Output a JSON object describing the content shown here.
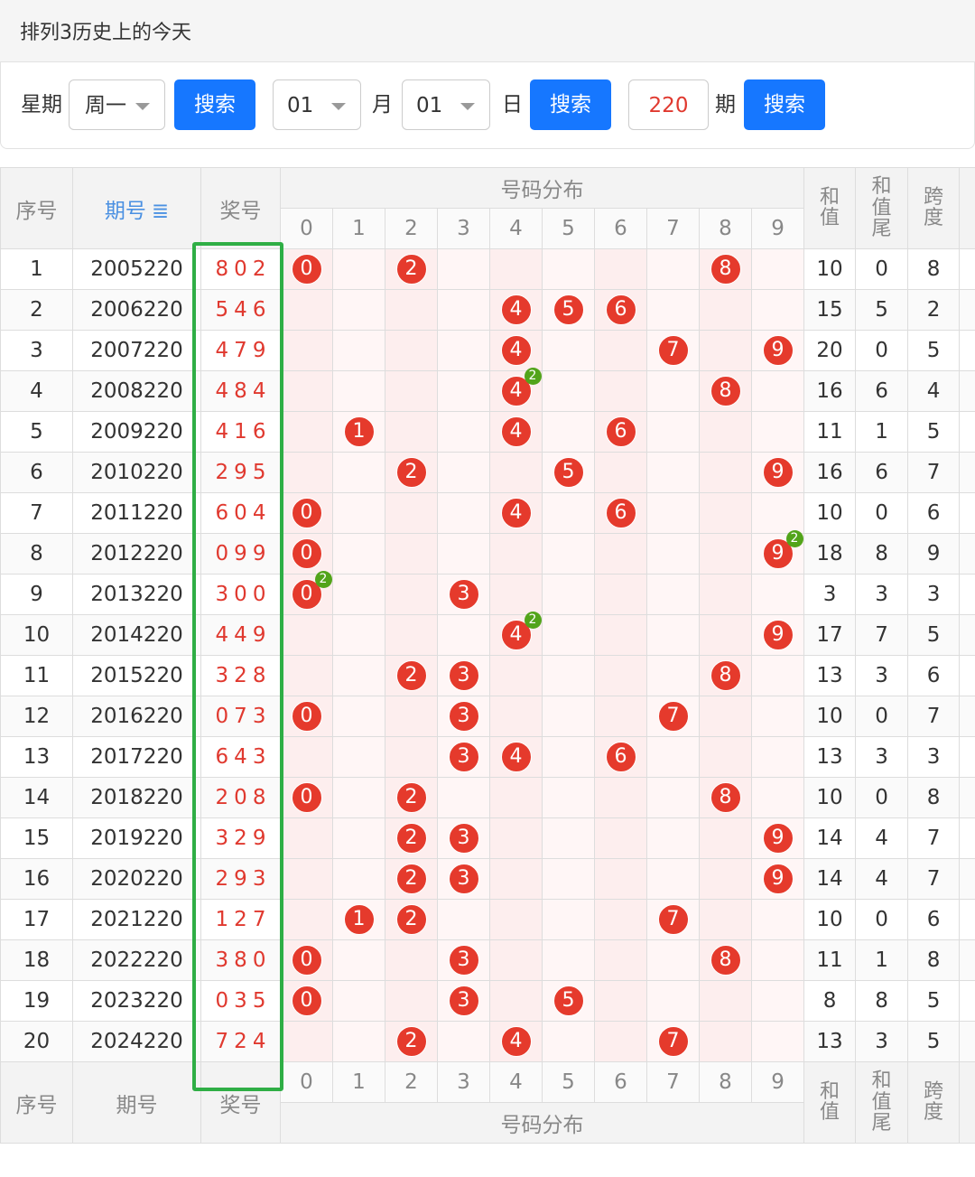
{
  "header": {
    "title": "排列3历史上的今天"
  },
  "filters": {
    "weekday_label": "星期",
    "weekday": "周一",
    "month": "01",
    "month_label": "月",
    "day": "01",
    "day_label": "日",
    "period": "220",
    "period_label": "期",
    "search_buttons": [
      "搜索",
      "搜索",
      "搜索"
    ]
  },
  "table": {
    "columns": {
      "index": "序号",
      "issue": "期号",
      "prize": "奖号",
      "distribution": "号码分布",
      "digits": [
        0,
        1,
        2,
        3,
        4,
        5,
        6,
        7,
        8,
        9
      ],
      "sum": "和值",
      "sum_tail": "和值尾",
      "span": "跨度"
    },
    "rows": [
      {
        "index": 1,
        "issue": "2005220",
        "prize": "802",
        "balls": [
          {
            "digit": 0
          },
          {
            "digit": 2
          },
          {
            "digit": 8
          }
        ],
        "sum": 10,
        "sum_tail": 0,
        "span": 8
      },
      {
        "index": 2,
        "issue": "2006220",
        "prize": "546",
        "balls": [
          {
            "digit": 4
          },
          {
            "digit": 5
          },
          {
            "digit": 6
          }
        ],
        "sum": 15,
        "sum_tail": 5,
        "span": 2
      },
      {
        "index": 3,
        "issue": "2007220",
        "prize": "479",
        "balls": [
          {
            "digit": 4
          },
          {
            "digit": 7
          },
          {
            "digit": 9
          }
        ],
        "sum": 20,
        "sum_tail": 0,
        "span": 5
      },
      {
        "index": 4,
        "issue": "2008220",
        "prize": "484",
        "balls": [
          {
            "digit": 4,
            "count": 2
          },
          {
            "digit": 8
          }
        ],
        "sum": 16,
        "sum_tail": 6,
        "span": 4
      },
      {
        "index": 5,
        "issue": "2009220",
        "prize": "416",
        "balls": [
          {
            "digit": 1
          },
          {
            "digit": 4
          },
          {
            "digit": 6
          }
        ],
        "sum": 11,
        "sum_tail": 1,
        "span": 5
      },
      {
        "index": 6,
        "issue": "2010220",
        "prize": "295",
        "balls": [
          {
            "digit": 2
          },
          {
            "digit": 5
          },
          {
            "digit": 9
          }
        ],
        "sum": 16,
        "sum_tail": 6,
        "span": 7
      },
      {
        "index": 7,
        "issue": "2011220",
        "prize": "604",
        "balls": [
          {
            "digit": 0
          },
          {
            "digit": 4
          },
          {
            "digit": 6
          }
        ],
        "sum": 10,
        "sum_tail": 0,
        "span": 6
      },
      {
        "index": 8,
        "issue": "2012220",
        "prize": "099",
        "balls": [
          {
            "digit": 0
          },
          {
            "digit": 9,
            "count": 2
          }
        ],
        "sum": 18,
        "sum_tail": 8,
        "span": 9
      },
      {
        "index": 9,
        "issue": "2013220",
        "prize": "300",
        "balls": [
          {
            "digit": 0,
            "count": 2
          },
          {
            "digit": 3
          }
        ],
        "sum": 3,
        "sum_tail": 3,
        "span": 3
      },
      {
        "index": 10,
        "issue": "2014220",
        "prize": "449",
        "balls": [
          {
            "digit": 4,
            "count": 2
          },
          {
            "digit": 9
          }
        ],
        "sum": 17,
        "sum_tail": 7,
        "span": 5
      },
      {
        "index": 11,
        "issue": "2015220",
        "prize": "328",
        "balls": [
          {
            "digit": 2
          },
          {
            "digit": 3
          },
          {
            "digit": 8
          }
        ],
        "sum": 13,
        "sum_tail": 3,
        "span": 6
      },
      {
        "index": 12,
        "issue": "2016220",
        "prize": "073",
        "balls": [
          {
            "digit": 0
          },
          {
            "digit": 3
          },
          {
            "digit": 7
          }
        ],
        "sum": 10,
        "sum_tail": 0,
        "span": 7
      },
      {
        "index": 13,
        "issue": "2017220",
        "prize": "643",
        "balls": [
          {
            "digit": 3
          },
          {
            "digit": 4
          },
          {
            "digit": 6
          }
        ],
        "sum": 13,
        "sum_tail": 3,
        "span": 3
      },
      {
        "index": 14,
        "issue": "2018220",
        "prize": "208",
        "balls": [
          {
            "digit": 0
          },
          {
            "digit": 2
          },
          {
            "digit": 8
          }
        ],
        "sum": 10,
        "sum_tail": 0,
        "span": 8
      },
      {
        "index": 15,
        "issue": "2019220",
        "prize": "329",
        "balls": [
          {
            "digit": 2
          },
          {
            "digit": 3
          },
          {
            "digit": 9
          }
        ],
        "sum": 14,
        "sum_tail": 4,
        "span": 7
      },
      {
        "index": 16,
        "issue": "2020220",
        "prize": "293",
        "balls": [
          {
            "digit": 2
          },
          {
            "digit": 3
          },
          {
            "digit": 9
          }
        ],
        "sum": 14,
        "sum_tail": 4,
        "span": 7
      },
      {
        "index": 17,
        "issue": "2021220",
        "prize": "127",
        "balls": [
          {
            "digit": 1
          },
          {
            "digit": 2
          },
          {
            "digit": 7
          }
        ],
        "sum": 10,
        "sum_tail": 0,
        "span": 6
      },
      {
        "index": 18,
        "issue": "2022220",
        "prize": "380",
        "balls": [
          {
            "digit": 0
          },
          {
            "digit": 3
          },
          {
            "digit": 8
          }
        ],
        "sum": 11,
        "sum_tail": 1,
        "span": 8
      },
      {
        "index": 19,
        "issue": "2023220",
        "prize": "035",
        "balls": [
          {
            "digit": 0
          },
          {
            "digit": 3
          },
          {
            "digit": 5
          }
        ],
        "sum": 8,
        "sum_tail": 8,
        "span": 5
      },
      {
        "index": 20,
        "issue": "2024220",
        "prize": "724",
        "balls": [
          {
            "digit": 2
          },
          {
            "digit": 4
          },
          {
            "digit": 7
          }
        ],
        "sum": 13,
        "sum_tail": 3,
        "span": 5
      }
    ]
  }
}
